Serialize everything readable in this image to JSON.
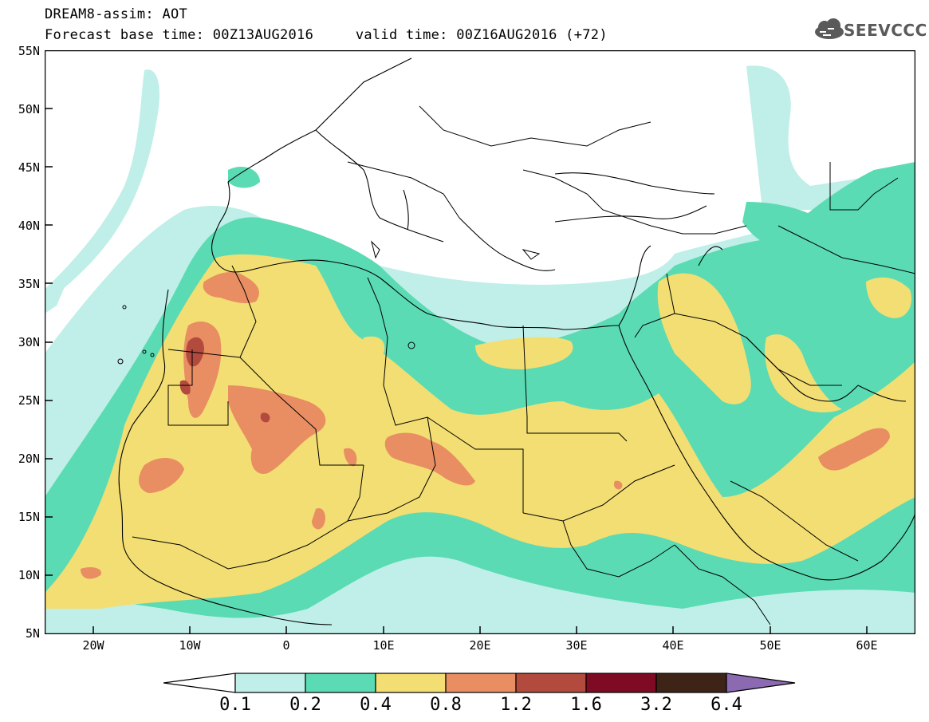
{
  "header": {
    "title": "DREAM8-assim: AOT",
    "base_time_label": "Forecast base time: 00Z13AUG2016",
    "valid_time_label": "valid time: 00Z16AUG2016 (+72)",
    "logo_text": "SEEVCCC"
  },
  "map": {
    "region": "North Africa / Mediterranean / Middle East",
    "lon_range": [
      -25,
      65
    ],
    "lat_range": [
      5,
      55
    ],
    "lat_ticks": [
      "55N",
      "50N",
      "45N",
      "40N",
      "35N",
      "30N",
      "25N",
      "20N",
      "15N",
      "10N",
      "5N"
    ],
    "lon_ticks": [
      "20W",
      "10W",
      "0",
      "10E",
      "20E",
      "30E",
      "40E",
      "50E",
      "60E"
    ]
  },
  "colorbar": {
    "levels": [
      "0.1",
      "0.2",
      "0.4",
      "0.8",
      "1.2",
      "1.6",
      "3.2",
      "6.4"
    ],
    "colors": [
      "#bfefe8",
      "#5bdbb3",
      "#f3de73",
      "#e88e62",
      "#b24a3e",
      "#7e0a24",
      "#3d2416",
      "#8c6ab2"
    ]
  }
}
